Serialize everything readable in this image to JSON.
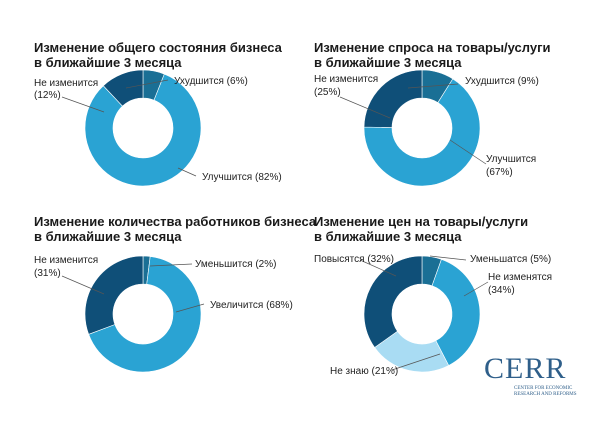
{
  "chart_data": [
    {
      "type": "pie",
      "title_lines": [
        "Изменение общего состояния бизнеса",
        "в ближайшие 3 месяца"
      ],
      "slices": [
        {
          "label": "Ухудшится (6%)",
          "value": 6,
          "color": "#1a6f95"
        },
        {
          "label": "Улучшится (82%)",
          "value": 82,
          "color": "#2aa3d3"
        },
        {
          "label": "Не изменится (12%)",
          "value": 12,
          "color": "#0f4f78"
        }
      ]
    },
    {
      "type": "pie",
      "title_lines": [
        "Изменение спроса на товары/услуги",
        "в ближайшие 3 месяца"
      ],
      "slices": [
        {
          "label": "Ухудшится (9%)",
          "value": 9,
          "color": "#1a6f95"
        },
        {
          "label": "Улучшится (67%)",
          "value": 67,
          "color": "#2aa3d3"
        },
        {
          "label": "Не изменится (25%)",
          "value": 25,
          "color": "#0f4f78"
        }
      ]
    },
    {
      "type": "pie",
      "title_lines": [
        "Изменение количества работников бизнеса",
        "в ближайшие 3 месяца"
      ],
      "slices": [
        {
          "label": "Уменьшится (2%)",
          "value": 2,
          "color": "#1a6f95"
        },
        {
          "label": "Увеличится (68%)",
          "value": 68,
          "color": "#2aa3d3"
        },
        {
          "label": "Не изменится (31%)",
          "value": 31,
          "color": "#0f4f78"
        }
      ]
    },
    {
      "type": "pie",
      "title_lines": [
        "Изменение цен на товары/услуги",
        "в ближайшие 3 месяца"
      ],
      "slices": [
        {
          "label": "Уменьшатся (5%)",
          "value": 5,
          "color": "#1a6f95"
        },
        {
          "label": "Не изменятся (34%)",
          "value": 34,
          "color": "#2aa3d3"
        },
        {
          "label": "Не знаю (21%)",
          "value": 21,
          "color": "#a9dcf3"
        },
        {
          "label": "Повысятся (32%)",
          "value": 32,
          "color": "#0f4f78"
        }
      ]
    }
  ],
  "logo": {
    "word": "CERR",
    "subtitle": "Center for Economic Research and Reforms"
  }
}
